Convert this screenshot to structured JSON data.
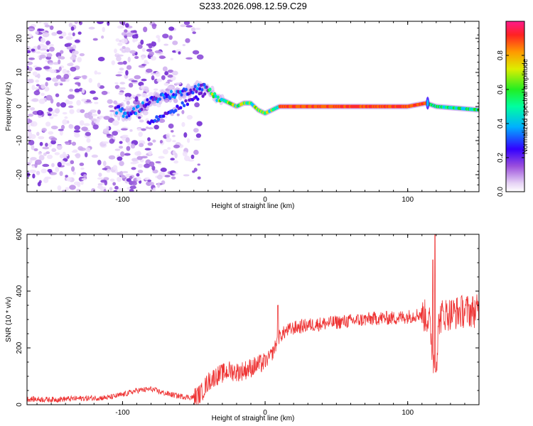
{
  "figure_title": "S233.2026.098.12.59.C29",
  "chart_data": [
    {
      "type": "heatmap",
      "title": "S233.2026.098.12.59.C29",
      "xlabel": "Height of straight line (km)",
      "ylabel": "Frequency (Hz)",
      "xlim": [
        -167,
        150
      ],
      "ylim": [
        -25,
        25
      ],
      "xticks": [
        -100,
        0,
        100
      ],
      "xtick_labels": [
        "-100",
        "0",
        "100"
      ],
      "yticks": [
        -20,
        -10,
        0,
        10,
        20
      ],
      "ytick_labels": [
        "-20",
        "-10",
        "0",
        "10",
        "20"
      ],
      "colorbar": {
        "label": "Normalized spectral amplitude",
        "range": [
          0,
          1
        ],
        "ticks": [
          0.0,
          0.2,
          0.4,
          0.6,
          0.8
        ],
        "tick_labels": [
          "0.0",
          "0.2",
          "0.4",
          "0.6",
          "0.8"
        ]
      },
      "ridge": {
        "description_points_x": [
          -100,
          -90,
          -80,
          -70,
          -60,
          -50,
          -45,
          -40,
          -35,
          -30,
          -25,
          -20,
          -15,
          -10,
          -5,
          0,
          10,
          20,
          50,
          100,
          113,
          120,
          150
        ],
        "frequency_hz": [
          -3,
          -1,
          2,
          3,
          4,
          5,
          6,
          5,
          3,
          2,
          1,
          0,
          1,
          1,
          -1,
          -2,
          0,
          0,
          0,
          0,
          1,
          0,
          -1
        ],
        "peak_amplitude_segment_km": [
          10,
          115
        ]
      },
      "noise_region_km": [
        -167,
        -55
      ]
    },
    {
      "type": "line",
      "title": "",
      "xlabel": "Height of straight line (km)",
      "ylabel": "SNR (10 * v/v)",
      "xlim": [
        -167,
        150
      ],
      "ylim": [
        0,
        600
      ],
      "xticks": [
        -100,
        0,
        100
      ],
      "xtick_labels": [
        "-100",
        "0",
        "100"
      ],
      "yticks": [
        0,
        200,
        400,
        600
      ],
      "ytick_labels": [
        "0",
        "200",
        "400",
        "600"
      ],
      "series": [
        {
          "name": "SNR",
          "color": "#ee3333",
          "x": [
            -167,
            -150,
            -130,
            -110,
            -100,
            -90,
            -80,
            -70,
            -60,
            -50,
            -45,
            -40,
            -35,
            -30,
            -25,
            -20,
            -15,
            -10,
            -5,
            0,
            5,
            10,
            15,
            20,
            30,
            40,
            50,
            60,
            70,
            80,
            90,
            100,
            110,
            115,
            118,
            120,
            122,
            125,
            130,
            140,
            150
          ],
          "y": [
            20,
            18,
            22,
            25,
            35,
            50,
            55,
            40,
            30,
            25,
            40,
            80,
            100,
            110,
            120,
            115,
            120,
            130,
            140,
            150,
            180,
            240,
            260,
            270,
            280,
            285,
            290,
            295,
            300,
            305,
            305,
            310,
            320,
            300,
            160,
            130,
            300,
            320,
            320,
            330,
            330
          ]
        }
      ],
      "annotations": [
        {
          "x": 10,
          "y": 350,
          "text": ""
        },
        {
          "x": 120,
          "y": 600,
          "text": ""
        },
        {
          "x": 120,
          "y": 115,
          "text": ""
        }
      ]
    }
  ]
}
